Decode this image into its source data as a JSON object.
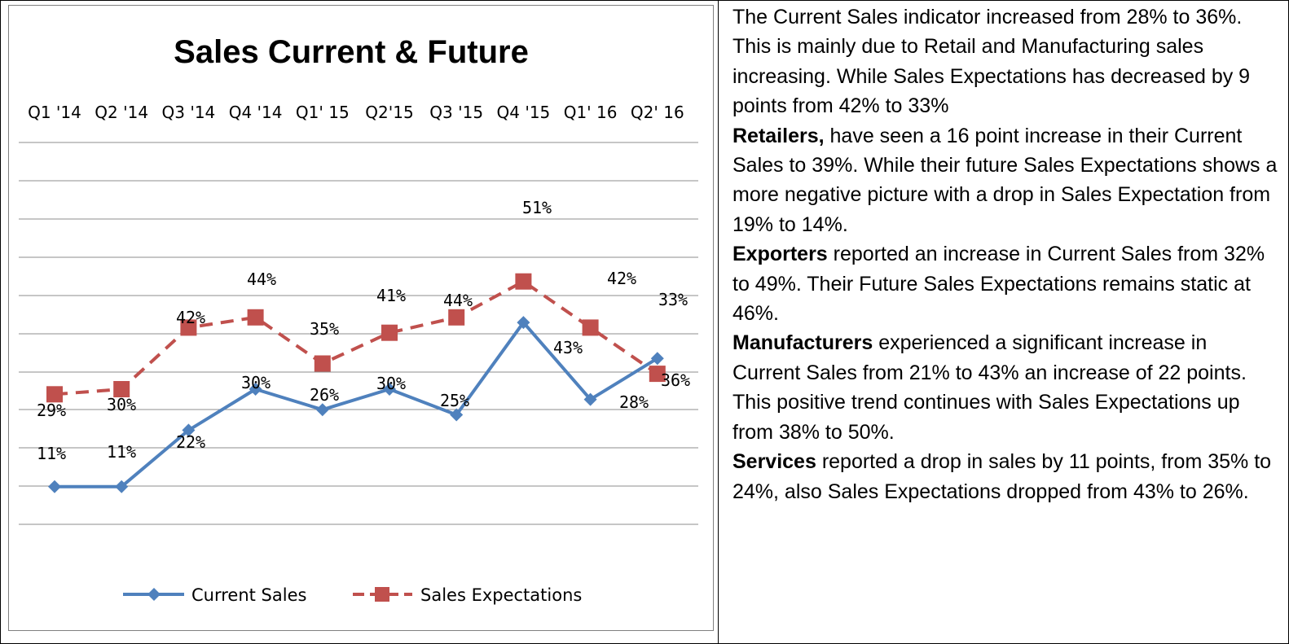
{
  "chart_data": {
    "type": "line",
    "title": "Sales Current & Future",
    "categories": [
      "Q1 '14",
      "Q2 '14",
      "Q3 '14",
      "Q4 '14",
      "Q1' 15",
      "Q2'15",
      "Q3 '15",
      "Q4 '15",
      "Q1' 16",
      "Q2' 16"
    ],
    "series": [
      {
        "name": "Current Sales",
        "values": [
          11,
          11,
          22,
          30,
          26,
          30,
          25,
          43,
          28,
          36
        ],
        "labels": [
          "11%",
          "11%",
          "22%",
          "30%",
          "26%",
          "30%",
          "25%",
          "43%",
          "28%",
          "36%"
        ],
        "color": "#4F81BD",
        "line_style": "solid",
        "marker": "diamond"
      },
      {
        "name": "Sales Expectations",
        "values": [
          29,
          30,
          42,
          44,
          35,
          41,
          44,
          51,
          42,
          33
        ],
        "labels": [
          "29%",
          "30%",
          "42%",
          "44%",
          "35%",
          "41%",
          "44%",
          "51%",
          "42%",
          "33%"
        ],
        "color": "#C0504D",
        "line_style": "dashed",
        "marker": "square"
      }
    ],
    "xaxis_position": "top",
    "y_axis_visible": false,
    "grid": "horizontal",
    "legend": "bottom"
  },
  "commentary": {
    "intro": "The Current Sales indicator increased from 28% to 36%. This is mainly due to Retail and Manufacturing sales increasing. While Sales Expectations has decreased by 9 points from 42% to 33%",
    "sections": [
      {
        "heading": "Retailers,",
        "text": " have seen a 16 point increase in their Current Sales to 39%. While their future Sales Expectations shows a more negative picture with a drop in Sales Expectation from 19% to 14%."
      },
      {
        "heading": "Exporters",
        "text": " reported an increase in Current Sales from 32% to 49%. Their Future Sales Expectations remains static at 46%."
      },
      {
        "heading": "Manufacturers",
        "text": " experienced a significant increase in Current Sales from 21% to 43% an increase of 22 points.  This positive trend continues with Sales Expectations up from 38% to 50%."
      },
      {
        "heading": "Services",
        "text": " reported a drop in sales by 11 points, from 35% to 24%, also Sales Expectations dropped from 43% to 26%."
      }
    ]
  }
}
